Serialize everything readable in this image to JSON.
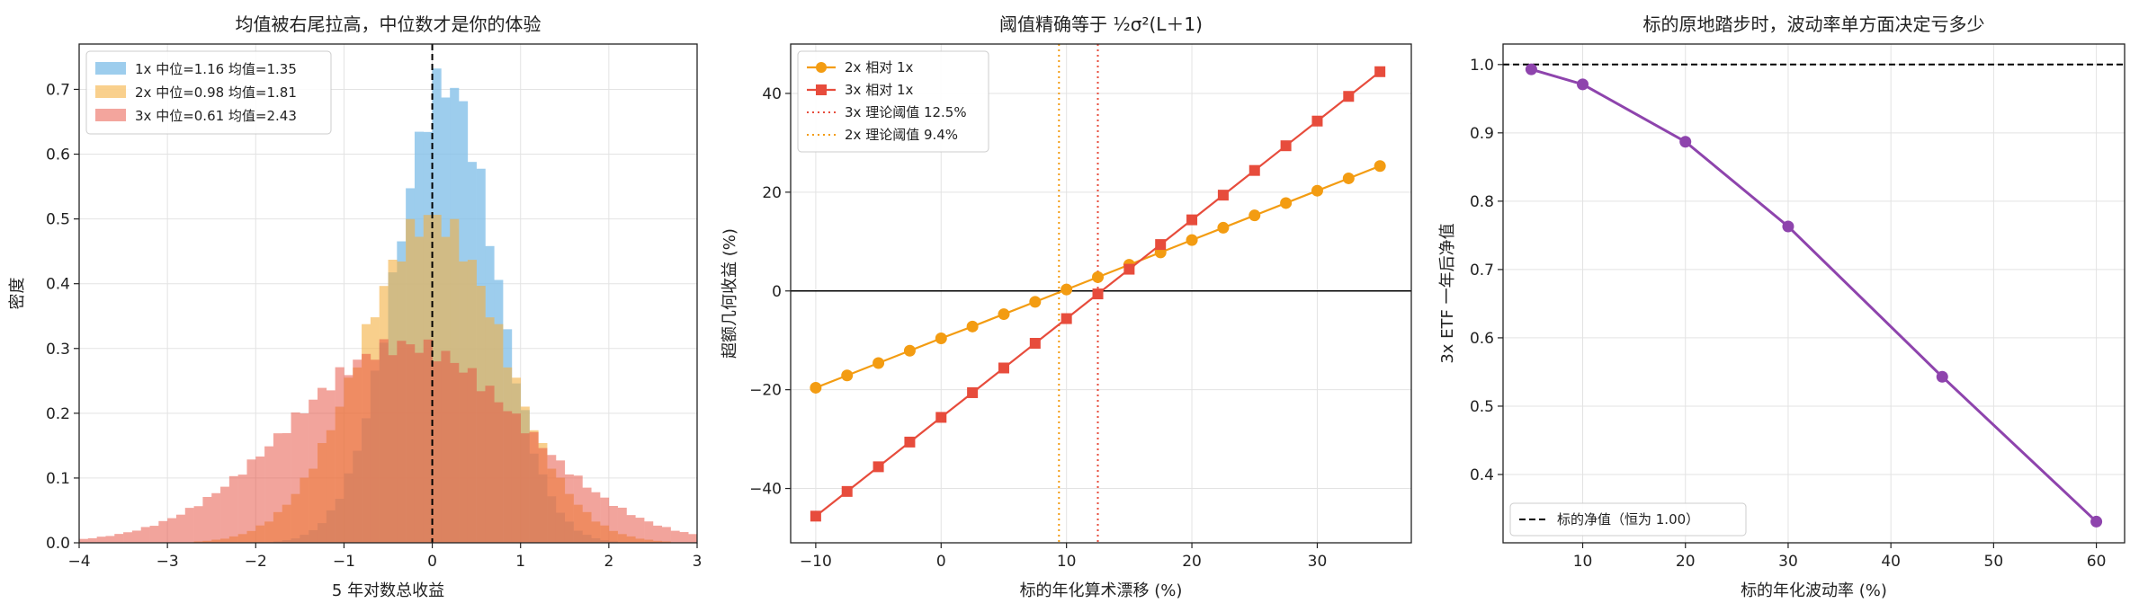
{
  "chart_data": [
    {
      "type": "histogram",
      "title": "均值被右尾拉高，中位数才是你的体验",
      "xlabel": "5 年对数总收益",
      "ylabel": "密度",
      "xlim": [
        -4,
        3
      ],
      "ylim": [
        0,
        0.77
      ],
      "xticks": [
        "−4",
        "−3",
        "−2",
        "−1",
        "0",
        "1",
        "2",
        "3"
      ],
      "yticks": [
        "0.0",
        "0.1",
        "0.2",
        "0.3",
        "0.4",
        "0.5",
        "0.6",
        "0.7"
      ],
      "grid": true,
      "legend_position": "top-left",
      "vline": {
        "x": 0,
        "style": "dashed",
        "color": "#000000"
      },
      "series": [
        {
          "name": "1x  中位=1.16 均值=1.35",
          "color": "#85c1e9",
          "opacity": 0.8,
          "mu": 0.15,
          "sigma": 0.56,
          "peak": 0.71
        },
        {
          "name": "2x  中位=0.98 均值=1.81",
          "color": "#f5b041",
          "opacity": 0.6,
          "mu": 0.0,
          "sigma": 0.8,
          "peak": 0.5
        },
        {
          "name": "3x  中位=0.61 均值=2.43",
          "color": "#e74c3c",
          "opacity": 0.5,
          "mu": -0.3,
          "sigma": 1.3,
          "peak": 0.305
        }
      ]
    },
    {
      "type": "line",
      "title": "阈值精确等于 ½σ²(L＋1)",
      "xlabel": "标的年化算术漂移 (%)",
      "ylabel": "超额几何收益 (%)",
      "xlim": [
        -12,
        37.5
      ],
      "ylim": [
        -51,
        50
      ],
      "xticks": [
        -10,
        0,
        10,
        20,
        30
      ],
      "yticks": [
        -40,
        -20,
        0,
        20,
        40
      ],
      "xtick_labels": [
        "−10",
        "0",
        "10",
        "20",
        "30"
      ],
      "ytick_labels": [
        "−40",
        "−20",
        "0",
        "20",
        "40"
      ],
      "grid": true,
      "legend_position": "top-left",
      "x": [
        -10,
        -7.5,
        -5,
        -2.5,
        0,
        2.5,
        5,
        7.5,
        10,
        12.5,
        15,
        17.5,
        20,
        22.5,
        25,
        27.5,
        30,
        32.5,
        35
      ],
      "series": [
        {
          "name": "2x 相对 1x",
          "color": "#f39c12",
          "marker": "circle",
          "values": [
            -19.6,
            -17.1,
            -14.6,
            -12.1,
            -9.6,
            -7.2,
            -4.7,
            -2.2,
            0.3,
            2.8,
            5.3,
            7.8,
            10.3,
            12.8,
            15.3,
            17.8,
            20.3,
            22.8,
            25.3
          ]
        },
        {
          "name": "3x 相对 1x",
          "color": "#e74c3c",
          "marker": "square",
          "values": [
            -45.6,
            -40.6,
            -35.6,
            -30.6,
            -25.6,
            -20.6,
            -15.6,
            -10.6,
            -5.6,
            -0.6,
            4.4,
            9.4,
            14.4,
            19.4,
            24.4,
            29.4,
            34.4,
            39.4,
            44.4
          ]
        }
      ],
      "vlines": [
        {
          "name": "3x 理论阈值 12.5%",
          "x": 12.5,
          "color": "#e74c3c",
          "style": "dotted"
        },
        {
          "name": "2x 理论阈值 9.4%",
          "x": 9.4,
          "color": "#f39c12",
          "style": "dotted"
        }
      ],
      "hline": {
        "y": 0,
        "color": "#000000",
        "style": "solid"
      }
    },
    {
      "type": "line",
      "title": "标的原地踏步时，波动率单方面决定亏多少",
      "xlabel": "标的年化波动率 (%)",
      "ylabel": "3x ETF 一年后净值",
      "xlim": [
        2.25,
        62.75
      ],
      "ylim": [
        0.3,
        1.03
      ],
      "xticks": [
        10,
        20,
        30,
        40,
        50,
        60
      ],
      "yticks": [
        0.4,
        0.5,
        0.6,
        0.7,
        0.8,
        0.9,
        1.0
      ],
      "xtick_labels": [
        "10",
        "20",
        "30",
        "40",
        "50",
        "60"
      ],
      "ytick_labels": [
        "0.4",
        "0.5",
        "0.6",
        "0.7",
        "0.8",
        "0.9",
        "1.0"
      ],
      "grid": true,
      "legend_position": "bottom-left",
      "series": [
        {
          "color": "#8e44ad",
          "marker": "circle",
          "x": [
            5,
            10,
            20,
            30,
            45,
            60
          ],
          "values": [
            0.993,
            0.971,
            0.887,
            0.763,
            0.543,
            0.331
          ]
        }
      ],
      "hline": {
        "name": "标的净值（恒为 1.00）",
        "y": 1.0,
        "color": "#000000",
        "style": "dashed"
      }
    }
  ]
}
